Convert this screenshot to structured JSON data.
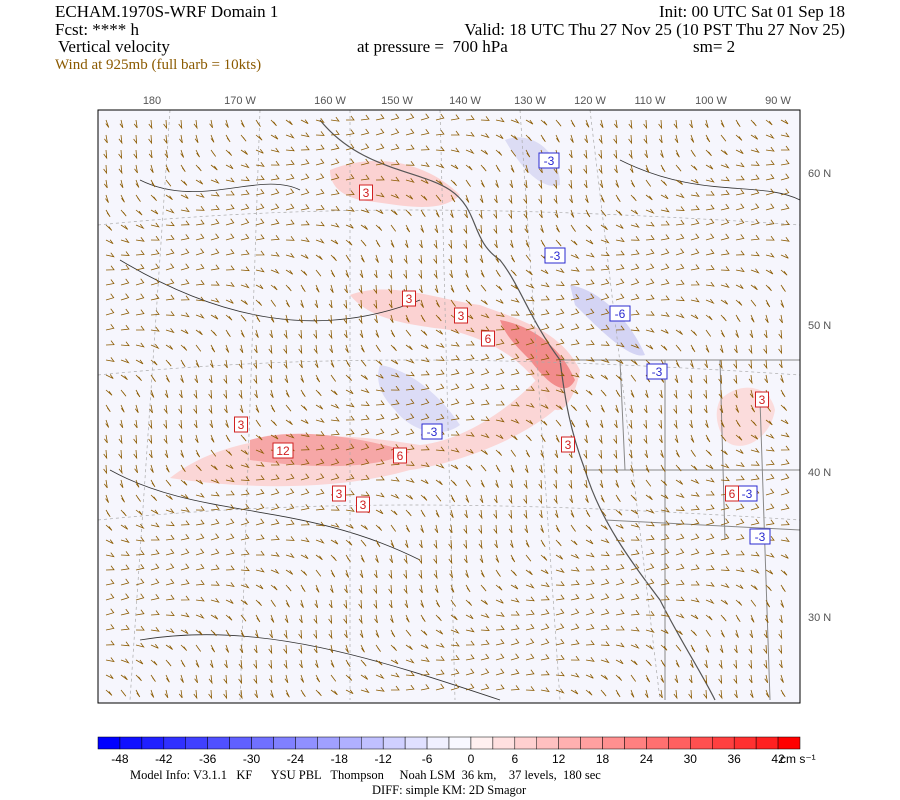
{
  "header": {
    "title": "ECHAM.1970S-WRF Domain 1",
    "init": "Init: 00 UTC Sat 01 Sep 18",
    "forecast": "Fcst: **** h",
    "valid": "Valid: 18 UTC Thu 27 Nov 25 (10 PST Thu 27 Nov 25)",
    "field": "Vertical velocity",
    "level": "at pressure =  700 hPa",
    "smoothing": "sm= 2",
    "wind": "Wind at 925mb (full barb = 10kts)"
  },
  "map": {
    "longitude_labels": [
      "180",
      "170 W",
      "160 W",
      "150 W",
      "140 W",
      "130 W",
      "120 W",
      "110 W",
      "100 W",
      "90 W"
    ],
    "latitude_labels": [
      "60 N",
      "50 N",
      "40 N",
      "30 N"
    ],
    "contour_labels": [
      {
        "text": "-3",
        "color": "#2a2ad0"
      },
      {
        "text": "3",
        "color": "#d02020"
      },
      {
        "text": "-3",
        "color": "#2a2ad0"
      },
      {
        "text": "3",
        "color": "#d02020"
      },
      {
        "text": "3",
        "color": "#d02020"
      },
      {
        "text": "-6",
        "color": "#2a2ad0"
      },
      {
        "text": "6",
        "color": "#d02020"
      },
      {
        "text": "-3",
        "color": "#2a2ad0"
      },
      {
        "text": "3",
        "color": "#d02020"
      },
      {
        "text": "3",
        "color": "#d02020"
      },
      {
        "text": "-3",
        "color": "#2a2ad0"
      },
      {
        "text": "3",
        "color": "#d02020"
      },
      {
        "text": "12",
        "color": "#d02020"
      },
      {
        "text": "6",
        "color": "#d02020"
      },
      {
        "text": "3",
        "color": "#d02020"
      },
      {
        "text": "-3",
        "color": "#2a2ad0"
      },
      {
        "text": "6",
        "color": "#d02020"
      },
      {
        "text": "3",
        "color": "#d02020"
      },
      {
        "text": "-3",
        "color": "#2a2ad0"
      }
    ]
  },
  "colorbar": {
    "labels": [
      "-48",
      "-42",
      "-36",
      "-30",
      "-24",
      "-18",
      "-12",
      "-6",
      "0",
      "6",
      "12",
      "18",
      "24",
      "30",
      "36",
      "42"
    ],
    "units": "cm s⁻¹",
    "colors": [
      "#0000ff",
      "#1010ff",
      "#2020ff",
      "#3030ff",
      "#4040ff",
      "#5050ff",
      "#6060ff",
      "#7070ff",
      "#8080ff",
      "#9090ff",
      "#a0a0ff",
      "#b0b0ff",
      "#c0c0ff",
      "#d0d0ff",
      "#e0e0ff",
      "#f0f0ff",
      "#f8f8ff",
      "#fff0f0",
      "#ffe0e0",
      "#ffd0d0",
      "#ffc0c0",
      "#ffb0b0",
      "#ffa0a0",
      "#ff9090",
      "#ff8080",
      "#ff7070",
      "#ff6060",
      "#ff5050",
      "#ff4040",
      "#ff3030",
      "#ff2020",
      "#ff0000"
    ]
  },
  "footer": {
    "model_info": "Model Info: V3.1.1   KF      YSU PBL   Thompson     Noah LSM  36 km,    37 levels,  180 sec",
    "diff": "DIFF: simple KM: 2D Smagor"
  }
}
